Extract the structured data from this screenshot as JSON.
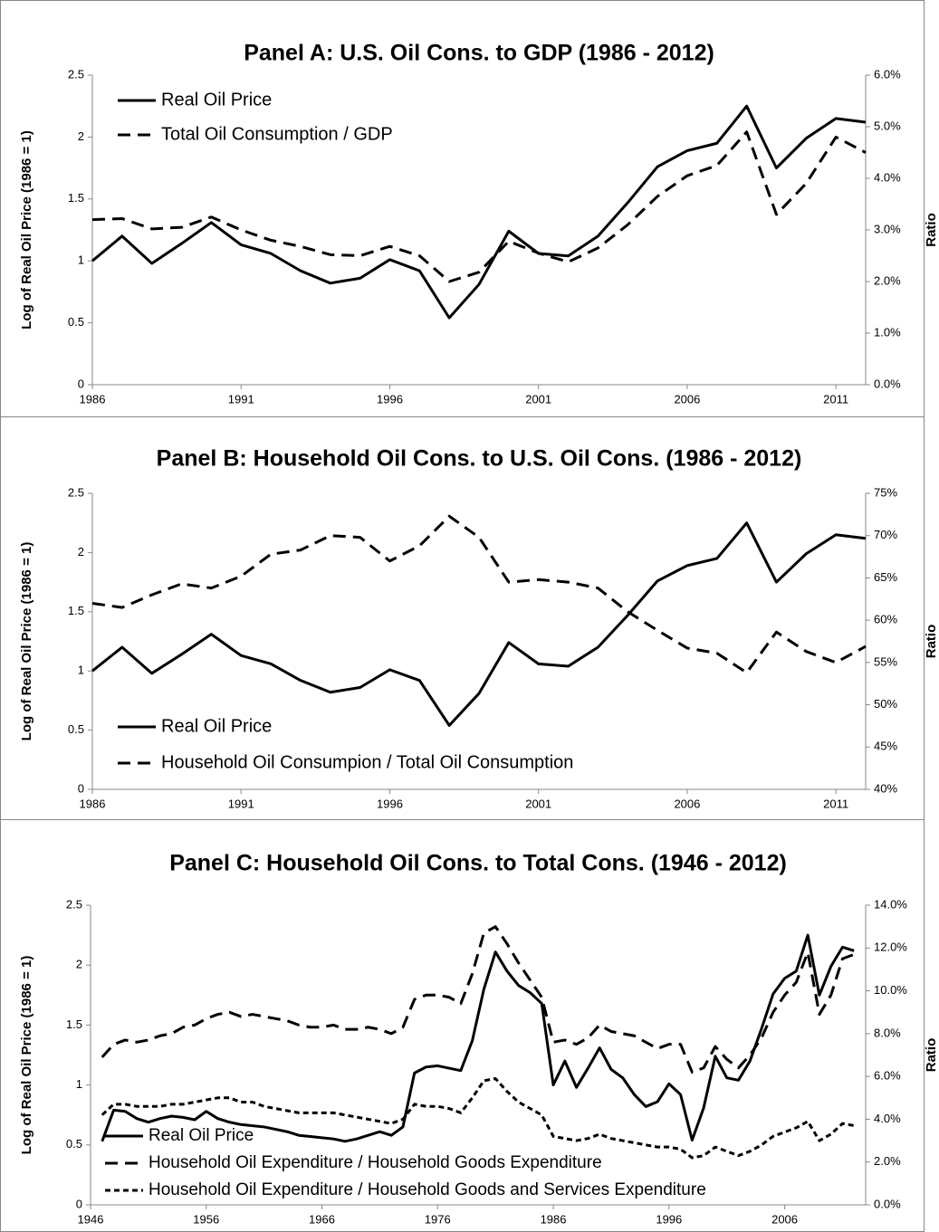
{
  "chart_data": [
    {
      "type": "line",
      "title": "Panel A: U.S. Oil Cons. to GDP (1986 - 2012)",
      "y_label": "Log of Real Oil Price (1986 = 1)",
      "y2_label": "Ratio",
      "legend_position": "upper left",
      "x": [
        1986,
        1987,
        1988,
        1989,
        1990,
        1991,
        1992,
        1993,
        1994,
        1995,
        1996,
        1997,
        1998,
        1999,
        2000,
        2001,
        2002,
        2003,
        2004,
        2005,
        2006,
        2007,
        2008,
        2009,
        2010,
        2011,
        2012
      ],
      "xlim": [
        1986,
        2012
      ],
      "xticks": [
        1986,
        1991,
        1996,
        2001,
        2006,
        2011
      ],
      "ylim": [
        0,
        2.5
      ],
      "yticks": [
        0,
        0.5,
        1,
        1.5,
        2,
        2.5
      ],
      "y2lim": [
        0,
        6
      ],
      "y2ticks": [
        {
          "value": 0,
          "label": "0.0%"
        },
        {
          "value": 1,
          "label": "1.0%"
        },
        {
          "value": 2,
          "label": "2.0%"
        },
        {
          "value": 3,
          "label": "3.0%"
        },
        {
          "value": 4,
          "label": "4.0%"
        },
        {
          "value": 5,
          "label": "5.0%"
        },
        {
          "value": 6,
          "label": "6.0%"
        }
      ],
      "series": [
        {
          "name": "Real Oil Price",
          "color": "#000000",
          "dash": "solid",
          "values": [
            1.0,
            1.2,
            0.98,
            1.14,
            1.31,
            1.13,
            1.06,
            0.92,
            0.82,
            0.86,
            1.01,
            0.92,
            0.54,
            0.81,
            1.24,
            1.06,
            1.04,
            1.2,
            1.47,
            1.76,
            1.89,
            1.95,
            2.25,
            1.75,
            1.99,
            2.15,
            2.12
          ]
        },
        {
          "name": "Total Oil Consumption / GDP",
          "color": "#000000",
          "dash": "dashed",
          "axis": "y2",
          "values": [
            3.2,
            3.22,
            3.02,
            3.05,
            3.25,
            3.0,
            2.8,
            2.68,
            2.52,
            2.5,
            2.68,
            2.5,
            2.0,
            2.18,
            2.78,
            2.55,
            2.38,
            2.65,
            3.1,
            3.65,
            4.05,
            4.25,
            4.9,
            3.3,
            3.9,
            4.8,
            4.5
          ]
        }
      ]
    },
    {
      "type": "line",
      "title": "Panel B: Household Oil Cons. to U.S. Oil Cons. (1986 - 2012)",
      "y_label": "Log of Real Oil Price (1986 = 1)",
      "y2_label": "Ratio",
      "legend_position": "lower left",
      "x": [
        1986,
        1987,
        1988,
        1989,
        1990,
        1991,
        1992,
        1993,
        1994,
        1995,
        1996,
        1997,
        1998,
        1999,
        2000,
        2001,
        2002,
        2003,
        2004,
        2005,
        2006,
        2007,
        2008,
        2009,
        2010,
        2011,
        2012
      ],
      "xlim": [
        1986,
        2012
      ],
      "xticks": [
        1986,
        1991,
        1996,
        2001,
        2006,
        2011
      ],
      "ylim": [
        0,
        2.5
      ],
      "yticks": [
        0,
        0.5,
        1,
        1.5,
        2,
        2.5
      ],
      "y2lim": [
        40,
        75
      ],
      "y2ticks": [
        {
          "value": 40,
          "label": "40%"
        },
        {
          "value": 45,
          "label": "45%"
        },
        {
          "value": 50,
          "label": "50%"
        },
        {
          "value": 55,
          "label": "55%"
        },
        {
          "value": 60,
          "label": "60%"
        },
        {
          "value": 65,
          "label": "65%"
        },
        {
          "value": 70,
          "label": "70%"
        },
        {
          "value": 75,
          "label": "75%"
        }
      ],
      "series": [
        {
          "name": "Real Oil Price",
          "color": "#000000",
          "dash": "solid",
          "values": [
            1.0,
            1.2,
            0.98,
            1.14,
            1.31,
            1.13,
            1.06,
            0.92,
            0.82,
            0.86,
            1.01,
            0.92,
            0.54,
            0.81,
            1.24,
            1.06,
            1.04,
            1.2,
            1.47,
            1.76,
            1.89,
            1.95,
            2.25,
            1.75,
            1.99,
            2.15,
            2.12
          ]
        },
        {
          "name": "Household Oil Consumpion / Total Oil Consumption",
          "color": "#000000",
          "dash": "dashed",
          "axis": "y2",
          "values": [
            62,
            61.5,
            63,
            64.3,
            63.8,
            65.2,
            67.8,
            68.3,
            70,
            69.8,
            67,
            68.8,
            72.3,
            69.8,
            64.5,
            64.8,
            64.5,
            63.8,
            61,
            58.8,
            56.7,
            56.1,
            53.8,
            58.6,
            56.3,
            55,
            56.9
          ]
        }
      ]
    },
    {
      "type": "line",
      "title": "Panel C: Household Oil Cons. to Total Cons. (1946 - 2012)",
      "y_label": "Log of Real Oil Price (1986 = 1)",
      "y2_label": "Ratio",
      "legend_position": "lower left",
      "x": [
        1947,
        1948,
        1949,
        1950,
        1951,
        1952,
        1953,
        1954,
        1955,
        1956,
        1957,
        1958,
        1959,
        1960,
        1961,
        1962,
        1963,
        1964,
        1965,
        1966,
        1967,
        1968,
        1969,
        1970,
        1971,
        1972,
        1973,
        1974,
        1975,
        1976,
        1977,
        1978,
        1979,
        1980,
        1981,
        1982,
        1983,
        1984,
        1985,
        1986,
        1987,
        1988,
        1989,
        1990,
        1991,
        1992,
        1993,
        1994,
        1995,
        1996,
        1997,
        1998,
        1999,
        2000,
        2001,
        2002,
        2003,
        2004,
        2005,
        2006,
        2007,
        2008,
        2009,
        2010,
        2011,
        2012
      ],
      "xlim": [
        1946,
        2013
      ],
      "xticks": [
        1946,
        1956,
        1966,
        1976,
        1986,
        1996,
        2006
      ],
      "ylim": [
        0,
        2.5
      ],
      "yticks": [
        0,
        0.5,
        1,
        1.5,
        2,
        2.5
      ],
      "y2lim": [
        0,
        14
      ],
      "y2ticks": [
        {
          "value": 0,
          "label": "0.0%"
        },
        {
          "value": 2,
          "label": "2.0%"
        },
        {
          "value": 4,
          "label": "4.0%"
        },
        {
          "value": 6,
          "label": "6.0%"
        },
        {
          "value": 8,
          "label": "8.0%"
        },
        {
          "value": 10,
          "label": "10.0%"
        },
        {
          "value": 12,
          "label": "12.0%"
        },
        {
          "value": 14,
          "label": "14.0%"
        }
      ],
      "series": [
        {
          "name": "Real Oil Price",
          "color": "#000000",
          "dash": "solid",
          "values": [
            0.53,
            0.79,
            0.78,
            0.72,
            0.69,
            0.72,
            0.74,
            0.73,
            0.71,
            0.78,
            0.72,
            0.69,
            0.67,
            0.66,
            0.65,
            0.63,
            0.61,
            0.58,
            0.57,
            0.56,
            0.55,
            0.53,
            0.55,
            0.58,
            0.61,
            0.58,
            0.65,
            1.1,
            1.15,
            1.16,
            1.14,
            1.12,
            1.37,
            1.8,
            2.11,
            1.95,
            1.83,
            1.77,
            1.68,
            1.0,
            1.2,
            0.98,
            1.14,
            1.31,
            1.13,
            1.06,
            0.92,
            0.82,
            0.86,
            1.01,
            0.92,
            0.54,
            0.81,
            1.24,
            1.06,
            1.04,
            1.2,
            1.47,
            1.76,
            1.89,
            1.95,
            2.25,
            1.75,
            1.99,
            2.15,
            2.12
          ]
        },
        {
          "name": "Household Oil Expenditure / Household Goods Expenditure",
          "color": "#000000",
          "dash": "dashed",
          "axis": "y2",
          "values": [
            6.9,
            7.5,
            7.7,
            7.6,
            7.7,
            7.9,
            8.0,
            8.3,
            8.4,
            8.7,
            8.9,
            9.0,
            8.8,
            8.9,
            8.8,
            8.7,
            8.6,
            8.4,
            8.3,
            8.3,
            8.4,
            8.2,
            8.2,
            8.3,
            8.2,
            8.0,
            8.3,
            9.6,
            9.8,
            9.8,
            9.7,
            9.4,
            10.8,
            12.7,
            13.0,
            12.2,
            11.3,
            10.5,
            9.7,
            7.6,
            7.7,
            7.5,
            7.8,
            8.4,
            8.1,
            8.0,
            7.9,
            7.6,
            7.3,
            7.5,
            7.5,
            6.2,
            6.4,
            7.4,
            6.8,
            6.4,
            7.0,
            7.8,
            9.0,
            9.8,
            10.4,
            11.8,
            8.9,
            9.8,
            11.5,
            11.7
          ]
        },
        {
          "name": "Household Oil Expenditure / Household Goods and Services Expenditure",
          "color": "#000000",
          "dash": "dotted",
          "axis": "y2",
          "values": [
            4.2,
            4.7,
            4.7,
            4.6,
            4.6,
            4.6,
            4.7,
            4.7,
            4.8,
            4.9,
            5.0,
            5.0,
            4.8,
            4.8,
            4.6,
            4.5,
            4.4,
            4.3,
            4.3,
            4.3,
            4.3,
            4.2,
            4.1,
            4.0,
            3.9,
            3.8,
            4.0,
            4.7,
            4.6,
            4.6,
            4.5,
            4.3,
            5.0,
            5.8,
            5.9,
            5.3,
            4.8,
            4.5,
            4.2,
            3.2,
            3.1,
            3.0,
            3.1,
            3.3,
            3.1,
            3.0,
            2.9,
            2.8,
            2.7,
            2.7,
            2.6,
            2.2,
            2.3,
            2.7,
            2.5,
            2.3,
            2.5,
            2.8,
            3.2,
            3.4,
            3.6,
            3.9,
            3.0,
            3.3,
            3.8,
            3.7
          ]
        }
      ]
    }
  ]
}
